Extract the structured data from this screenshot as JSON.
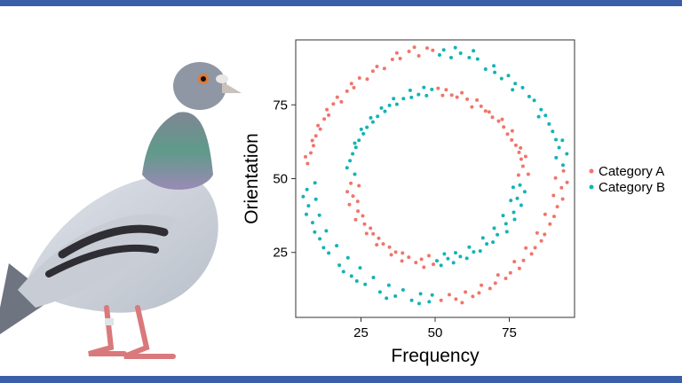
{
  "colors": {
    "frame_bar": "#3b5ea8",
    "category_a": "#f0756b",
    "category_b": "#14b3b6",
    "plot_border": "#333333"
  },
  "illustration": {
    "subject": "pigeon-illustration"
  },
  "chart_data": {
    "type": "scatter",
    "title": "",
    "xlabel": "Frequency",
    "ylabel": "Orientation",
    "xlim": [
      3,
      97
    ],
    "ylim": [
      3,
      97
    ],
    "xticks": [
      25,
      50,
      75
    ],
    "yticks": [
      25,
      50,
      75
    ],
    "grid": false,
    "legend_position": "right",
    "structure": "two concentric rings centered at (50, 50); inner ring radius about 27, outer ring radius about 42; each ring split into quadrant arcs alternating between categories",
    "series": [
      {
        "name": "Category A",
        "color": "#f0756b",
        "points": [
          [
            47.3,
            94.2
          ],
          [
            41.2,
            93.1
          ],
          [
            35.6,
            90.4
          ],
          [
            30.4,
            88.0
          ],
          [
            24.5,
            84.1
          ],
          [
            20.3,
            79.6
          ],
          [
            15.7,
            75.3
          ],
          [
            12.6,
            70.2
          ],
          [
            9.8,
            64.5
          ],
          [
            8.1,
            58.7
          ],
          [
            7.0,
            55.1
          ],
          [
            44.5,
            91.6
          ],
          [
            38.2,
            90.7
          ],
          [
            32.9,
            87.3
          ],
          [
            27.1,
            83.7
          ],
          [
            22.6,
            80.8
          ],
          [
            18.4,
            76.0
          ],
          [
            14.1,
            71.5
          ],
          [
            11.3,
            66.8
          ],
          [
            9.0,
            61.2
          ],
          [
            6.3,
            57.4
          ],
          [
            49.2,
            93.5
          ],
          [
            43.0,
            94.5
          ],
          [
            37.1,
            92.6
          ],
          [
            29.0,
            86.4
          ],
          [
            21.8,
            82.2
          ],
          [
            17.0,
            77.6
          ],
          [
            13.5,
            73.4
          ],
          [
            10.5,
            68.0
          ],
          [
            8.6,
            62.9
          ],
          [
            93.3,
            52.6
          ],
          [
            92.6,
            46.9
          ],
          [
            91.2,
            40.5
          ],
          [
            88.7,
            34.6
          ],
          [
            85.8,
            28.9
          ],
          [
            82.5,
            24.5
          ],
          [
            78.4,
            19.6
          ],
          [
            73.8,
            16.2
          ],
          [
            68.5,
            12.8
          ],
          [
            62.7,
            10.1
          ],
          [
            57.0,
            9.2
          ],
          [
            52.0,
            8.8
          ],
          [
            90.6,
            50.2
          ],
          [
            89.9,
            44.3
          ],
          [
            87.1,
            37.9
          ],
          [
            84.4,
            31.6
          ],
          [
            80.6,
            26.5
          ],
          [
            76.7,
            21.9
          ],
          [
            71.2,
            17.4
          ],
          [
            65.6,
            13.9
          ],
          [
            60.2,
            11.6
          ],
          [
            54.8,
            10.7
          ],
          [
            94.5,
            48.7
          ],
          [
            93.0,
            43.1
          ],
          [
            90.1,
            37.2
          ],
          [
            86.9,
            31.1
          ],
          [
            83.7,
            26.6
          ],
          [
            79.8,
            22.3
          ],
          [
            75.4,
            18.1
          ],
          [
            70.3,
            14.6
          ],
          [
            64.8,
            11.3
          ],
          [
            59.1,
            8.0
          ],
          [
            51.0,
            80.6
          ],
          [
            55.6,
            78.3
          ],
          [
            60.8,
            76.9
          ],
          [
            65.5,
            74.5
          ],
          [
            69.3,
            70.8
          ],
          [
            73.1,
            67.5
          ],
          [
            75.8,
            63.1
          ],
          [
            78.3,
            58.9
          ],
          [
            79.6,
            54.2
          ],
          [
            81.4,
            51.5
          ],
          [
            52.5,
            78.2
          ],
          [
            57.4,
            77.6
          ],
          [
            62.4,
            74.3
          ],
          [
            67.0,
            72.9
          ],
          [
            71.4,
            69.5
          ],
          [
            74.4,
            65.1
          ],
          [
            77.2,
            61.3
          ],
          [
            79.0,
            56.6
          ],
          [
            78.1,
            51.2
          ],
          [
            53.7,
            80.1
          ],
          [
            59.0,
            79.1
          ],
          [
            64.1,
            76.6
          ],
          [
            68.2,
            72.6
          ],
          [
            72.6,
            70.1
          ],
          [
            76.0,
            66.2
          ],
          [
            78.8,
            60.4
          ],
          [
            80.5,
            57.5
          ],
          [
            21.6,
            48.4
          ],
          [
            22.3,
            44.1
          ],
          [
            24.0,
            39.0
          ],
          [
            26.2,
            34.6
          ],
          [
            29.1,
            31.3
          ],
          [
            32.5,
            27.9
          ],
          [
            36.7,
            25.1
          ],
          [
            41.1,
            23.4
          ],
          [
            45.4,
            22.7
          ],
          [
            49.4,
            21.0
          ],
          [
            24.3,
            47.6
          ],
          [
            23.9,
            42.3
          ],
          [
            25.6,
            37.4
          ],
          [
            28.2,
            33.2
          ],
          [
            31.0,
            29.8
          ],
          [
            34.6,
            26.8
          ],
          [
            39.0,
            24.8
          ],
          [
            43.5,
            21.6
          ],
          [
            47.9,
            23.9
          ],
          [
            20.4,
            45.6
          ],
          [
            21.1,
            41.2
          ],
          [
            23.2,
            36.1
          ],
          [
            26.9,
            31.4
          ],
          [
            30.3,
            27.6
          ],
          [
            35.2,
            24.2
          ],
          [
            38.8,
            22.1
          ],
          [
            46.2,
            20.0
          ]
        ]
      },
      {
        "name": "Category B",
        "color": "#14b3b6",
        "points": [
          [
            52.9,
            93.6
          ],
          [
            58.6,
            92.5
          ],
          [
            64.3,
            90.5
          ],
          [
            69.8,
            88.2
          ],
          [
            74.7,
            84.9
          ],
          [
            79.5,
            80.8
          ],
          [
            83.4,
            76.5
          ],
          [
            87.2,
            71.4
          ],
          [
            89.6,
            66.0
          ],
          [
            91.8,
            60.5
          ],
          [
            93.1,
            54.6
          ],
          [
            55.4,
            91.0
          ],
          [
            61.5,
            91.0
          ],
          [
            67.0,
            87.1
          ],
          [
            72.4,
            83.9
          ],
          [
            77.0,
            82.2
          ],
          [
            81.7,
            77.8
          ],
          [
            85.7,
            73.4
          ],
          [
            88.4,
            68.5
          ],
          [
            90.7,
            63.2
          ],
          [
            90.8,
            57.1
          ],
          [
            51.5,
            91.9
          ],
          [
            56.8,
            94.4
          ],
          [
            62.9,
            93.3
          ],
          [
            70.1,
            86.0
          ],
          [
            76.1,
            80.1
          ],
          [
            84.9,
            71.0
          ],
          [
            92.9,
            63.0
          ],
          [
            94.4,
            58.4
          ],
          [
            6.8,
            46.3
          ],
          [
            7.3,
            40.8
          ],
          [
            8.7,
            35.1
          ],
          [
            11.1,
            29.6
          ],
          [
            14.1,
            24.8
          ],
          [
            17.7,
            20.7
          ],
          [
            21.8,
            17.0
          ],
          [
            26.4,
            14.2
          ],
          [
            31.4,
            11.6
          ],
          [
            36.6,
            10.2
          ],
          [
            42.1,
            8.8
          ],
          [
            48.0,
            8.3
          ],
          [
            9.5,
            48.6
          ],
          [
            9.8,
            43.0
          ],
          [
            11.0,
            37.6
          ],
          [
            13.3,
            32.3
          ],
          [
            16.8,
            27.3
          ],
          [
            20.6,
            23.2
          ],
          [
            24.7,
            19.8
          ],
          [
            29.2,
            16.5
          ],
          [
            34.4,
            13.9
          ],
          [
            39.2,
            12.3
          ],
          [
            45.1,
            11.0
          ],
          [
            5.5,
            43.9
          ],
          [
            6.6,
            37.9
          ],
          [
            9.4,
            31.9
          ],
          [
            12.4,
            26.6
          ],
          [
            19.1,
            18.5
          ],
          [
            23.6,
            15.3
          ],
          [
            33.6,
            9.5
          ],
          [
            44.6,
            7.7
          ],
          [
            49.0,
            10.6
          ],
          [
            48.9,
            80.2
          ],
          [
            44.4,
            78.5
          ],
          [
            39.3,
            77.1
          ],
          [
            34.6,
            74.8
          ],
          [
            30.6,
            71.1
          ],
          [
            27.0,
            67.4
          ],
          [
            24.3,
            63.0
          ],
          [
            22.2,
            58.4
          ],
          [
            20.3,
            53.7
          ],
          [
            22.9,
            51.5
          ],
          [
            47.1,
            78.1
          ],
          [
            42.0,
            77.5
          ],
          [
            37.1,
            75.2
          ],
          [
            33.1,
            72.8
          ],
          [
            29.0,
            69.2
          ],
          [
            25.8,
            65.2
          ],
          [
            23.3,
            60.6
          ],
          [
            21.3,
            56.1
          ],
          [
            46.2,
            80.9
          ],
          [
            41.6,
            79.9
          ],
          [
            36.0,
            77.1
          ],
          [
            31.9,
            73.9
          ],
          [
            28.3,
            70.6
          ],
          [
            25.1,
            66.7
          ],
          [
            22.9,
            62.0
          ],
          [
            78.6,
            47.8
          ],
          [
            77.7,
            43.3
          ],
          [
            76.5,
            38.6
          ],
          [
            73.9,
            34.7
          ],
          [
            71.0,
            31.0
          ],
          [
            67.4,
            27.9
          ],
          [
            63.0,
            25.2
          ],
          [
            58.5,
            23.6
          ],
          [
            54.3,
            22.9
          ],
          [
            50.6,
            22.2
          ],
          [
            80.2,
            45.6
          ],
          [
            79.0,
            41.0
          ],
          [
            76.8,
            36.2
          ],
          [
            74.2,
            32.0
          ],
          [
            69.5,
            28.5
          ],
          [
            65.2,
            25.5
          ],
          [
            60.7,
            23.0
          ],
          [
            56.2,
            21.5
          ],
          [
            52.0,
            20.6
          ],
          [
            76.3,
            47.1
          ],
          [
            75.5,
            42.6
          ],
          [
            72.9,
            37.5
          ],
          [
            69.9,
            33.2
          ],
          [
            66.1,
            29.9
          ],
          [
            61.5,
            26.8
          ],
          [
            56.9,
            24.9
          ],
          [
            53.1,
            24.5
          ]
        ]
      }
    ]
  }
}
